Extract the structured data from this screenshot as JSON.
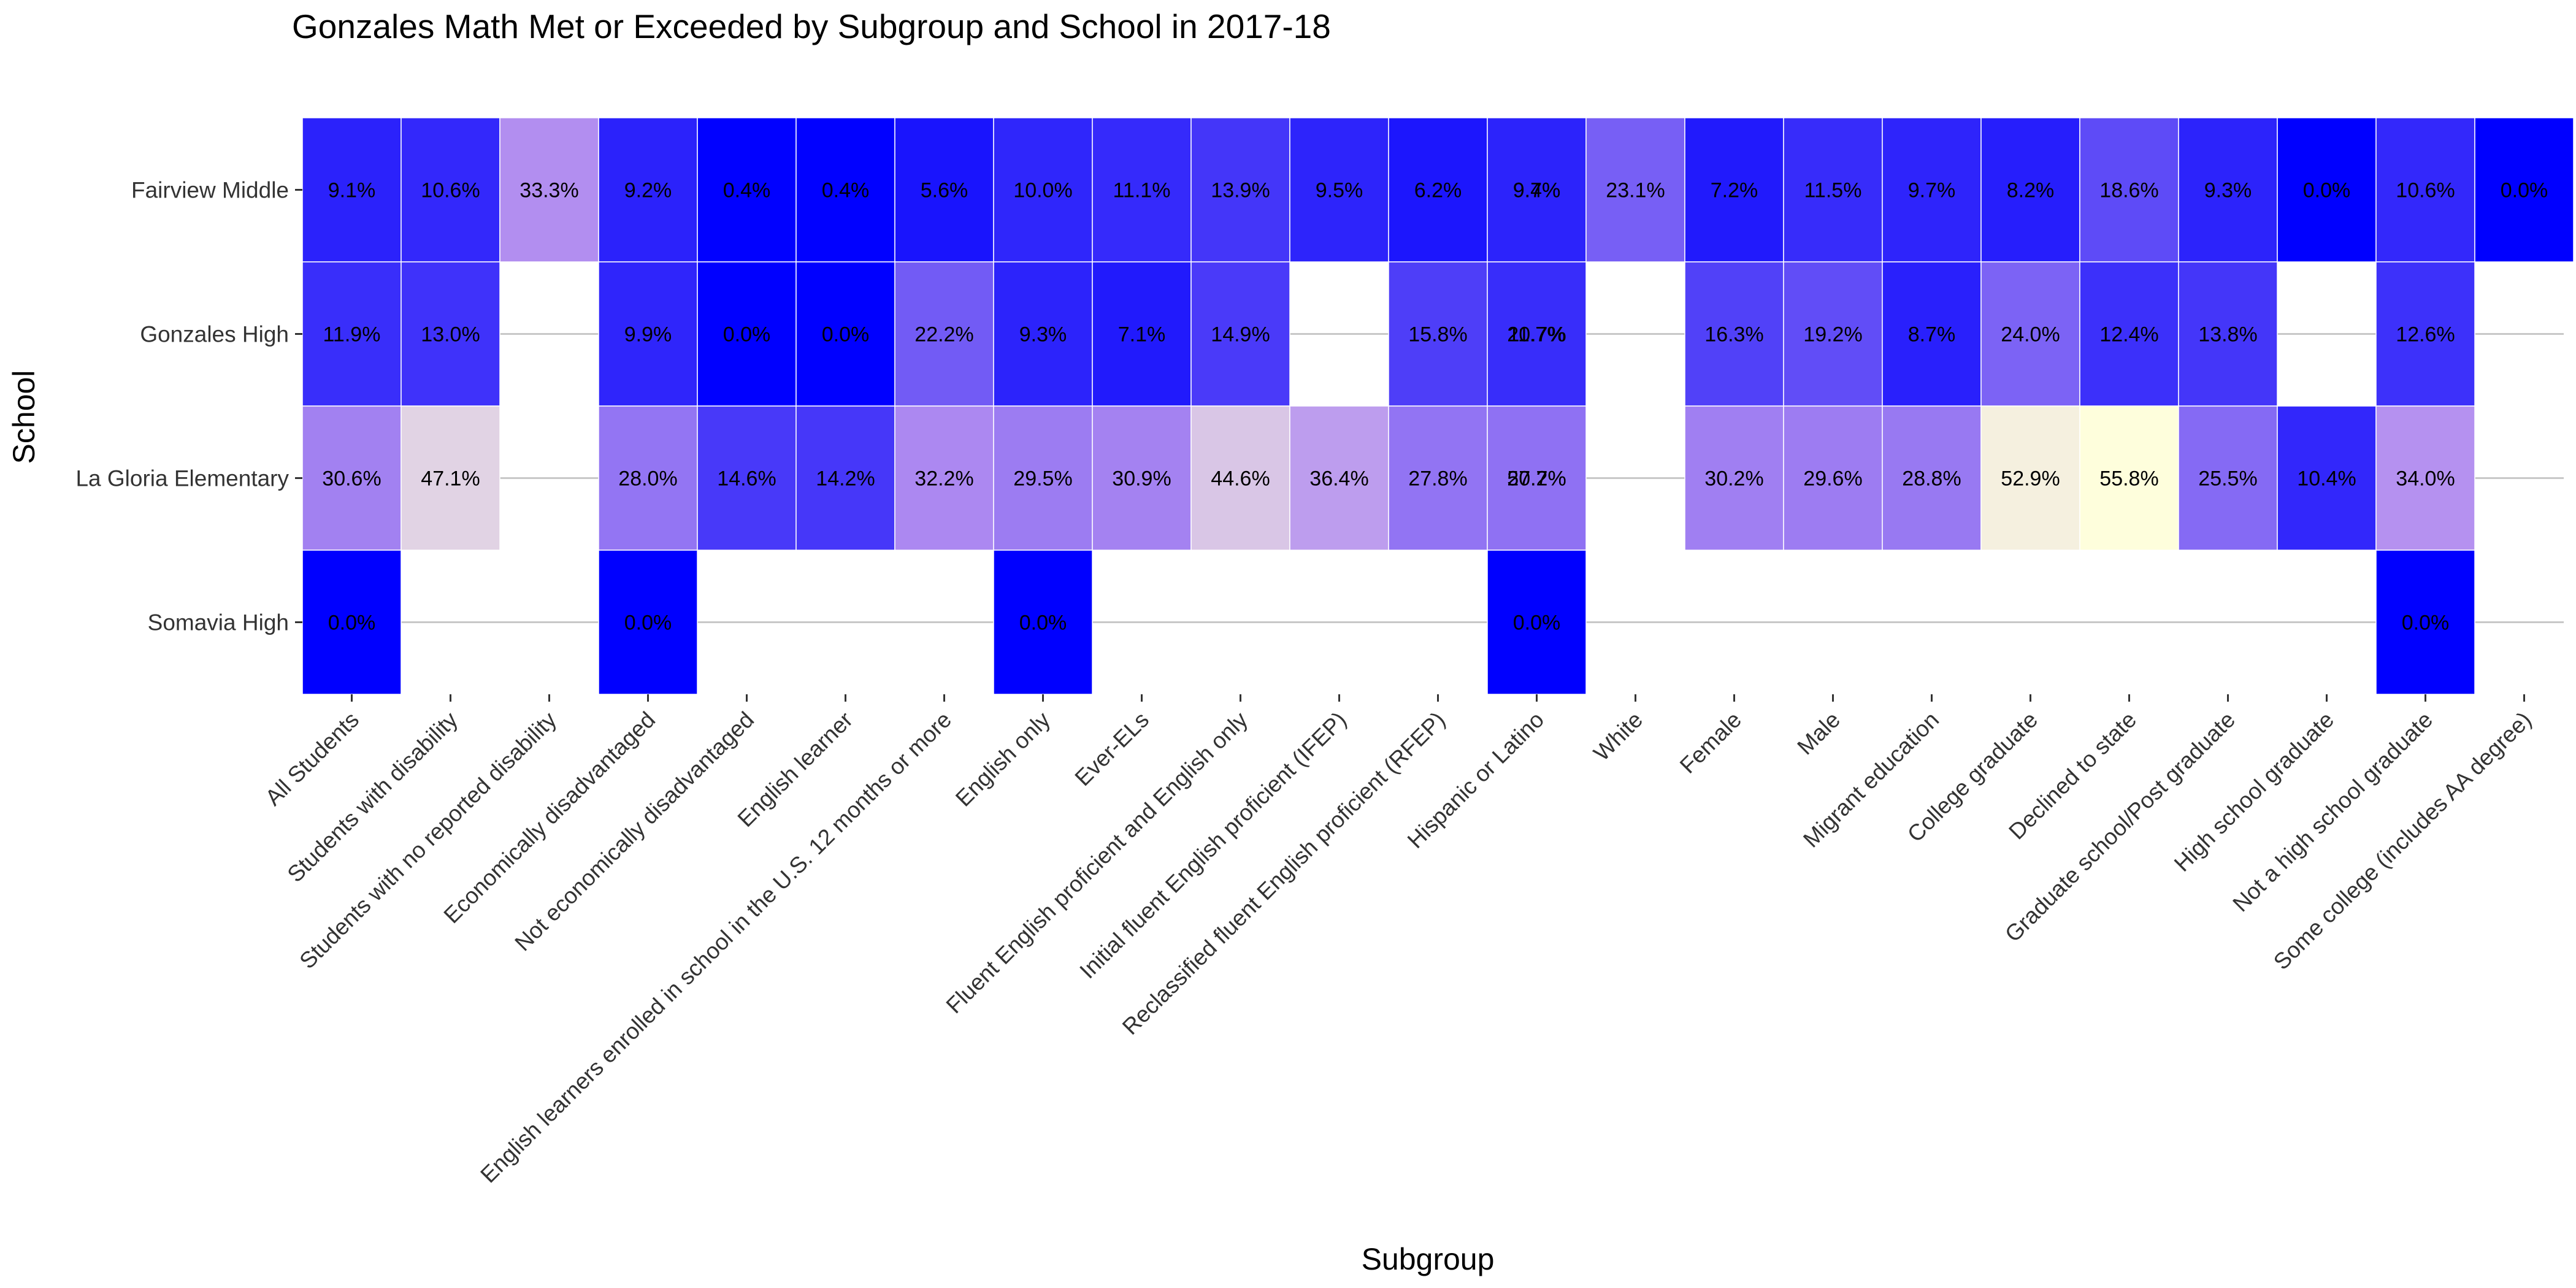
{
  "chart_data": {
    "type": "heatmap",
    "title": "Gonzales Math Met or Exceeded by Subgroup and School in 2017-18",
    "xlabel": "Subgroup",
    "ylabel": "School",
    "grid": true,
    "legend": "none",
    "x": [
      "All Students",
      "Students with disability",
      "Students with no reported disability",
      "Economically disadvantaged",
      "Not economically disadvantaged",
      "English learner",
      "English learners enrolled in school in the U.S. 12 months or more",
      "English only",
      "Ever-ELs",
      "Fluent English proficient and English only",
      "Initial fluent English proficient (IFEP)",
      "Reclassified fluent English proficient (RFEP)",
      "Hispanic or Latino",
      "White",
      "Female",
      "Male",
      "Migrant education",
      "College graduate",
      "Declined to state",
      "Graduate school/Post graduate",
      "High school graduate",
      "Not a high school graduate",
      "Some college (includes AA degree)"
    ],
    "y": [
      "Fairview Middle",
      "Gonzales High",
      "La Gloria Elementary",
      "Somavia High"
    ],
    "color_scale": {
      "low": "#0000ff",
      "mid": "#b48ff0",
      "high": "#ffffdc",
      "min": 0,
      "max": 56
    },
    "cells": [
      {
        "x": "All Students",
        "y": "Fairview Middle",
        "value": 9.1,
        "label": "9.1%"
      },
      {
        "x": "Students with disability",
        "y": "Fairview Middle",
        "value": 10.6,
        "label": "10.6%"
      },
      {
        "x": "Students with no reported disability",
        "y": "Fairview Middle",
        "value": 33.3,
        "label": "33.3%"
      },
      {
        "x": "Economically disadvantaged",
        "y": "Fairview Middle",
        "value": 9.2,
        "label": "9.2%"
      },
      {
        "x": "Not economically disadvantaged",
        "y": "Fairview Middle",
        "value": 0.4,
        "label": "0.4%"
      },
      {
        "x": "English learner",
        "y": "Fairview Middle",
        "value": 0.4,
        "label": "0.4%"
      },
      {
        "x": "English learners enrolled in school in the U.S. 12 months or more",
        "y": "Fairview Middle",
        "value": 5.6,
        "label": "5.6%"
      },
      {
        "x": "English only",
        "y": "Fairview Middle",
        "value": 10.0,
        "label": "10.0%"
      },
      {
        "x": "Ever-ELs",
        "y": "Fairview Middle",
        "value": 11.1,
        "label": "11.1%"
      },
      {
        "x": "Fluent English proficient and English only",
        "y": "Fairview Middle",
        "value": 13.9,
        "label": "13.9%"
      },
      {
        "x": "Initial fluent English proficient (IFEP)",
        "y": "Fairview Middle",
        "value": 9.5,
        "label": "9.5%"
      },
      {
        "x": "Reclassified fluent English proficient (RFEP)",
        "y": "Fairview Middle",
        "value": 6.2,
        "label": "6.2%"
      },
      {
        "x": "Hispanic or Latino",
        "y": "Fairview Middle",
        "value": 9.4,
        "label": "9.4%"
      },
      {
        "x": "Hispanic or Latino",
        "y": "Fairview Middle",
        "value": 9.7,
        "label": "9.7%"
      },
      {
        "x": "White",
        "y": "Fairview Middle",
        "value": 23.1,
        "label": "23.1%"
      },
      {
        "x": "Female",
        "y": "Fairview Middle",
        "value": 7.2,
        "label": "7.2%"
      },
      {
        "x": "Male",
        "y": "Fairview Middle",
        "value": 11.5,
        "label": "11.5%"
      },
      {
        "x": "Migrant education",
        "y": "Fairview Middle",
        "value": 9.7,
        "label": "9.7%"
      },
      {
        "x": "College graduate",
        "y": "Fairview Middle",
        "value": 8.2,
        "label": "8.2%"
      },
      {
        "x": "Declined to state",
        "y": "Fairview Middle",
        "value": 18.6,
        "label": "18.6%"
      },
      {
        "x": "Graduate school/Post graduate",
        "y": "Fairview Middle",
        "value": 9.3,
        "label": "9.3%"
      },
      {
        "x": "High school graduate",
        "y": "Fairview Middle",
        "value": 0.0,
        "label": "0.0%"
      },
      {
        "x": "Not a high school graduate",
        "y": "Fairview Middle",
        "value": 10.6,
        "label": "10.6%"
      },
      {
        "x": "Some college (includes AA degree)",
        "y": "Fairview Middle",
        "value": 0.0,
        "label": "0.0%"
      },
      {
        "x": "All Students",
        "y": "Gonzales High",
        "value": 11.9,
        "label": "11.9%"
      },
      {
        "x": "Students with disability",
        "y": "Gonzales High",
        "value": 13.0,
        "label": "13.0%"
      },
      {
        "x": "Economically disadvantaged",
        "y": "Gonzales High",
        "value": 9.9,
        "label": "9.9%"
      },
      {
        "x": "Not economically disadvantaged",
        "y": "Gonzales High",
        "value": 0.0,
        "label": "0.0%"
      },
      {
        "x": "English learner",
        "y": "Gonzales High",
        "value": 0.0,
        "label": "0.0%"
      },
      {
        "x": "English learners enrolled in school in the U.S. 12 months or more",
        "y": "Gonzales High",
        "value": 22.2,
        "label": "22.2%"
      },
      {
        "x": "English only",
        "y": "Gonzales High",
        "value": 9.3,
        "label": "9.3%"
      },
      {
        "x": "Ever-ELs",
        "y": "Gonzales High",
        "value": 7.1,
        "label": "7.1%"
      },
      {
        "x": "Fluent English proficient and English only",
        "y": "Gonzales High",
        "value": 14.9,
        "label": "14.9%"
      },
      {
        "x": "Reclassified fluent English proficient (RFEP)",
        "y": "Gonzales High",
        "value": 15.8,
        "label": "15.8%"
      },
      {
        "x": "Hispanic or Latino",
        "y": "Gonzales High",
        "value": 11.7,
        "label": "11.7%"
      },
      {
        "x": "Hispanic or Latino",
        "y": "Gonzales High",
        "value": 20.7,
        "label": "20.7%"
      },
      {
        "x": "Female",
        "y": "Gonzales High",
        "value": 16.3,
        "label": "16.3%"
      },
      {
        "x": "Male",
        "y": "Gonzales High",
        "value": 19.2,
        "label": "19.2%"
      },
      {
        "x": "Migrant education",
        "y": "Gonzales High",
        "value": 8.7,
        "label": "8.7%"
      },
      {
        "x": "College graduate",
        "y": "Gonzales High",
        "value": 24.0,
        "label": "24.0%"
      },
      {
        "x": "Declined to state",
        "y": "Gonzales High",
        "value": 12.4,
        "label": "12.4%"
      },
      {
        "x": "Graduate school/Post graduate",
        "y": "Gonzales High",
        "value": 13.8,
        "label": "13.8%"
      },
      {
        "x": "Not a high school graduate",
        "y": "Gonzales High",
        "value": 12.6,
        "label": "12.6%"
      },
      {
        "x": "All Students",
        "y": "La Gloria Elementary",
        "value": 30.6,
        "label": "30.6%"
      },
      {
        "x": "Students with disability",
        "y": "La Gloria Elementary",
        "value": 47.1,
        "label": "47.1%"
      },
      {
        "x": "Economically disadvantaged",
        "y": "La Gloria Elementary",
        "value": 28.0,
        "label": "28.0%"
      },
      {
        "x": "Not economically disadvantaged",
        "y": "La Gloria Elementary",
        "value": 14.6,
        "label": "14.6%"
      },
      {
        "x": "English learner",
        "y": "La Gloria Elementary",
        "value": 14.2,
        "label": "14.2%"
      },
      {
        "x": "English learners enrolled in school in the U.S. 12 months or more",
        "y": "La Gloria Elementary",
        "value": 32.2,
        "label": "32.2%"
      },
      {
        "x": "English only",
        "y": "La Gloria Elementary",
        "value": 29.5,
        "label": "29.5%"
      },
      {
        "x": "Ever-ELs",
        "y": "La Gloria Elementary",
        "value": 30.9,
        "label": "30.9%"
      },
      {
        "x": "Fluent English proficient and English only",
        "y": "La Gloria Elementary",
        "value": 44.6,
        "label": "44.6%"
      },
      {
        "x": "Initial fluent English proficient (IFEP)",
        "y": "La Gloria Elementary",
        "value": 36.4,
        "label": "36.4%"
      },
      {
        "x": "Reclassified fluent English proficient (RFEP)",
        "y": "La Gloria Elementary",
        "value": 27.8,
        "label": "27.8%"
      },
      {
        "x": "Hispanic or Latino",
        "y": "La Gloria Elementary",
        "value": 27.2,
        "label": "27.2%"
      },
      {
        "x": "Hispanic or Latino",
        "y": "La Gloria Elementary",
        "value": 50.7,
        "label": "50.7%"
      },
      {
        "x": "Female",
        "y": "La Gloria Elementary",
        "value": 30.2,
        "label": "30.2%"
      },
      {
        "x": "Male",
        "y": "La Gloria Elementary",
        "value": 29.6,
        "label": "29.6%"
      },
      {
        "x": "Migrant education",
        "y": "La Gloria Elementary",
        "value": 28.8,
        "label": "28.8%"
      },
      {
        "x": "College graduate",
        "y": "La Gloria Elementary",
        "value": 52.9,
        "label": "52.9%"
      },
      {
        "x": "Declined to state",
        "y": "La Gloria Elementary",
        "value": 55.8,
        "label": "55.8%"
      },
      {
        "x": "Graduate school/Post graduate",
        "y": "La Gloria Elementary",
        "value": 25.5,
        "label": "25.5%"
      },
      {
        "x": "High school graduate",
        "y": "La Gloria Elementary",
        "value": 10.4,
        "label": "10.4%"
      },
      {
        "x": "Not a high school graduate",
        "y": "La Gloria Elementary",
        "value": 34.0,
        "label": "34.0%"
      },
      {
        "x": "All Students",
        "y": "Somavia High",
        "value": 0.0,
        "label": "0.0%"
      },
      {
        "x": "Economically disadvantaged",
        "y": "Somavia High",
        "value": 0.0,
        "label": "0.0%"
      },
      {
        "x": "English only",
        "y": "Somavia High",
        "value": 0.0,
        "label": "0.0%"
      },
      {
        "x": "Hispanic or Latino",
        "y": "Somavia High",
        "value": 0.0,
        "label": "0.0%"
      },
      {
        "x": "Not a high school graduate",
        "y": "Somavia High",
        "value": 0.0,
        "label": "0.0%"
      }
    ]
  }
}
